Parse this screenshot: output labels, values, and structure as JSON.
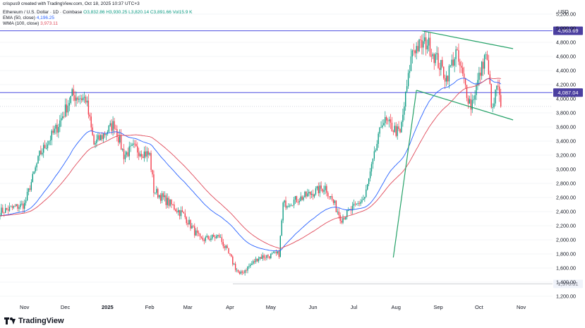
{
  "header": {
    "credit": "crispus9 created with TradingView.com, Oct 18, 2025 10:37 UTC+3",
    "symbol": "Ethereum / U.S. Dollar · 1D · Coinbase",
    "ohlc": "O3,832.86 H3,930.25 L3,820.14 C3,891.66 Vol15.9 K",
    "ema_label": "EMA (50, close)",
    "ema_value": "4,196.25",
    "wma_label": "WMA (100, close)",
    "wma_value": "3,973.11"
  },
  "footer": {
    "brand": "TradingView"
  },
  "colors": {
    "up": "#089981",
    "down": "#f23645",
    "ema": "#2962ff",
    "wma": "#e04a5a",
    "trend": "#26a269",
    "hline": "#4b4ee0",
    "label": "#4b3fa0",
    "gray_label": "#787b86"
  },
  "chart_data": {
    "type": "candlestick",
    "currency": "USD",
    "y_ticks": [
      1200,
      1400,
      1600,
      1800,
      2000,
      2200,
      2400,
      2600,
      2800,
      3000,
      3200,
      3400,
      3600,
      3800,
      4000,
      4200,
      4400,
      4600,
      4800,
      5000,
      5200
    ],
    "y_tick_labels": [
      "1,200.00",
      "1,400.00",
      "1,600.00",
      "1,800.00",
      "2,000.00",
      "2,200.00",
      "2,400.00",
      "2,600.00",
      "2,800.00",
      "3,000.00",
      "3,200.00",
      "3,400.00",
      "3,600.00",
      "3,800.00",
      "4,000.00",
      "4,200.00",
      "4,400.00",
      "4,600.00",
      "4,800.00",
      "5,000.00",
      "5,200.00"
    ],
    "x_labels": [
      "Nov",
      "Dec",
      "2025",
      "Feb",
      "Mar",
      "Apr",
      "May",
      "Jun",
      "Jul",
      "Aug",
      "Sep",
      "Oct",
      "Nov"
    ],
    "x_label_dates": [
      "2024-11-01",
      "2024-12-01",
      "2025-01-01",
      "2025-02-01",
      "2025-03-01",
      "2025-04-01",
      "2025-05-01",
      "2025-06-01",
      "2025-07-01",
      "2025-08-01",
      "2025-09-01",
      "2025-10-01",
      "2025-11-01"
    ],
    "x_start": "2024-10-14",
    "x_end": "2025-11-24",
    "y_range": [
      1150,
      5300
    ],
    "price_levels": [
      {
        "value": 4963.69,
        "label": "4,963.69",
        "style": "highlight"
      },
      {
        "value": 4087.04,
        "label": "4,087.04",
        "style": "highlight"
      },
      {
        "value": 3891.66,
        "label": "",
        "style": "current"
      },
      {
        "value": 1376.01,
        "label": "1,376.01",
        "style": "gray"
      }
    ],
    "trendlines": [
      {
        "from": [
          "2025-08-20",
          4963
        ],
        "to": [
          "2025-10-26",
          4710
        ]
      },
      {
        "from": [
          "2025-08-16",
          4120
        ],
        "to": [
          "2025-10-26",
          3700
        ]
      },
      {
        "from": [
          "2025-07-30",
          1750
        ],
        "to": [
          "2025-08-16",
          4120
        ]
      }
    ],
    "monthly_path": [
      [
        "2024-10-14",
        2400
      ],
      [
        "2024-11-01",
        2500
      ],
      [
        "2024-11-12",
        3200
      ],
      [
        "2024-11-25",
        3600
      ],
      [
        "2024-12-06",
        4050
      ],
      [
        "2024-12-16",
        4000
      ],
      [
        "2024-12-22",
        3350
      ],
      [
        "2025-01-06",
        3650
      ],
      [
        "2025-01-13",
        3200
      ],
      [
        "2025-01-20",
        3300
      ],
      [
        "2025-02-01",
        3200
      ],
      [
        "2025-02-04",
        2700
      ],
      [
        "2025-02-26",
        2350
      ],
      [
        "2025-03-10",
        2000
      ],
      [
        "2025-03-24",
        2050
      ],
      [
        "2025-04-08",
        1500
      ],
      [
        "2025-04-22",
        1750
      ],
      [
        "2025-05-07",
        1800
      ],
      [
        "2025-05-10",
        2500
      ],
      [
        "2025-05-24",
        2600
      ],
      [
        "2025-06-10",
        2750
      ],
      [
        "2025-06-22",
        2300
      ],
      [
        "2025-07-09",
        2600
      ],
      [
        "2025-07-22",
        3700
      ],
      [
        "2025-08-04",
        3500
      ],
      [
        "2025-08-13",
        4700
      ],
      [
        "2025-08-24",
        4800
      ],
      [
        "2025-09-07",
        4300
      ],
      [
        "2025-09-14",
        4650
      ],
      [
        "2025-09-25",
        3900
      ],
      [
        "2025-10-06",
        4650
      ],
      [
        "2025-10-11",
        3800
      ],
      [
        "2025-10-14",
        4200
      ],
      [
        "2025-10-17",
        3890
      ]
    ]
  }
}
